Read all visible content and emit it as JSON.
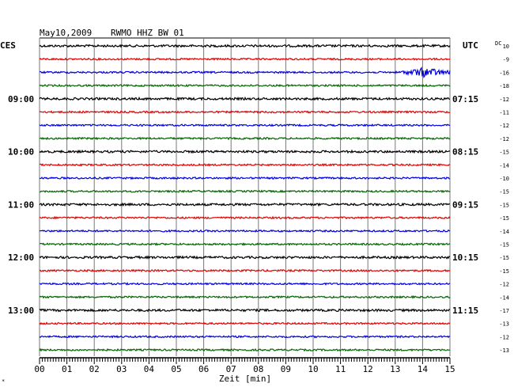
{
  "header": {
    "date": "May10,2009",
    "station": "RWMO HHZ BW 01",
    "left_tz": "CES",
    "right_tz": "UTC",
    "dc_label": "DC"
  },
  "chart_data": {
    "type": "line",
    "title": "May10,2009   RWMO HHZ BW 01",
    "xlabel": "Zeit [min]",
    "xlim": [
      0,
      15
    ],
    "x_ticks": [
      "00",
      "01",
      "02",
      "03",
      "04",
      "05",
      "06",
      "07",
      "08",
      "09",
      "10",
      "11",
      "12",
      "13",
      "14",
      "15"
    ],
    "trace_colors": [
      "#000000",
      "#e00000",
      "#0000e0",
      "#006400"
    ],
    "left_time_labels": [
      {
        "row": 4,
        "label": "09:00"
      },
      {
        "row": 8,
        "label": "10:00"
      },
      {
        "row": 12,
        "label": "11:00"
      },
      {
        "row": 16,
        "label": "12:00"
      },
      {
        "row": 20,
        "label": "13:00"
      }
    ],
    "right_time_labels": [
      {
        "row": 4,
        "label": "07:15"
      },
      {
        "row": 8,
        "label": "08:15"
      },
      {
        "row": 12,
        "label": "09:15"
      },
      {
        "row": 16,
        "label": "10:15"
      },
      {
        "row": 20,
        "label": "11:15"
      }
    ],
    "dc_offsets": [
      "10",
      "-9",
      "-16",
      "-18",
      "-12",
      "-11",
      "-12",
      "-12",
      "-15",
      "-14",
      "-10",
      "-15",
      "-15",
      "-15",
      "-14",
      "-15",
      "-15",
      "-15",
      "-12",
      "-14",
      "-17",
      "-13",
      "-12",
      "-13"
    ],
    "events": [
      {
        "row": 2,
        "start_min": 13.2,
        "end_min": 15,
        "note": "high amplitude wave train"
      }
    ]
  }
}
